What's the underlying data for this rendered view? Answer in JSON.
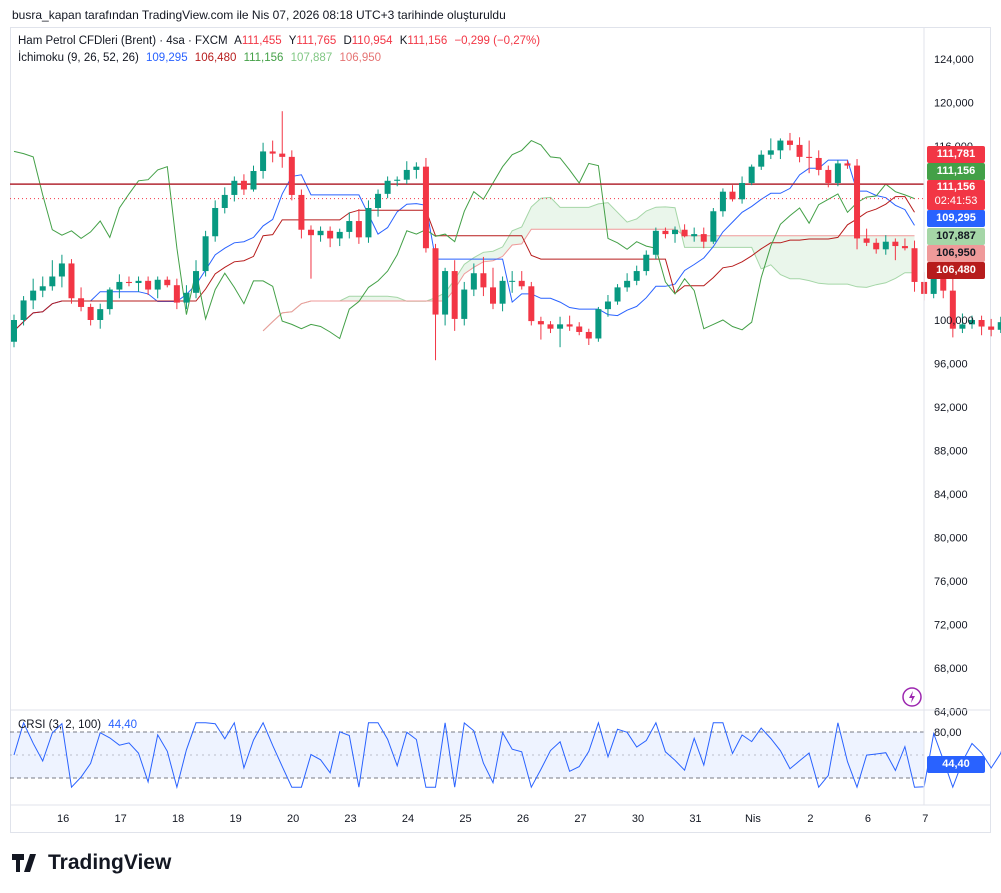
{
  "credit": "busra_kapan tarafından TradingView.com ile Nis 07, 2026 08:18 UTC+3 tarihinde oluşturuldu",
  "legend": {
    "symbol": "Ham Petrol CFDleri (Brent) · 4sa · FXCM",
    "open_label": "A",
    "open": "111,455",
    "high_label": "Y",
    "high": "111,765",
    "low_label": "D",
    "low": "110,954",
    "close_label": "K",
    "close": "111,156",
    "change": "−0,299 (−0,27%)",
    "ichimoku_label": "İchimoku (9, 26, 52, 26)",
    "ichimoku_values": [
      "109,295",
      "106,480",
      "111,156",
      "107,887",
      "106,950"
    ],
    "crsi_label": "CRSI (3, 2, 100)",
    "crsi_value": "44,40"
  },
  "price_tags": {
    "t1": "111,781",
    "t2": "111,156",
    "t3a": "111,156",
    "t3b": "02:41:53",
    "t4": "109,295",
    "t5": "107,887",
    "t6": "106,950",
    "t7": "106,480",
    "crsi": "44,40"
  },
  "colors": {
    "up": "#089981",
    "down": "#f23645",
    "tenkan": "#2962ff",
    "kijun": "#b71c1c",
    "chikou": "#43a047",
    "span_a": "#a5d6a7",
    "span_b": "#ef9a9a",
    "crsi": "#2962ff",
    "resistance": "#b22833"
  },
  "logo_text": "TradingView",
  "chart_data": {
    "type": "candlestick",
    "y_axis": [
      "124,000",
      "120,000",
      "116,000",
      "100,000",
      "96,000",
      "92,000",
      "88,000",
      "84,000",
      "80,000",
      "76,000",
      "72,000",
      "68,000",
      "64,000"
    ],
    "ylim": [
      63000,
      125000
    ],
    "x_ticks": [
      {
        "label": "16",
        "i": 2
      },
      {
        "label": "17",
        "i": 8
      },
      {
        "label": "18",
        "i": 14
      },
      {
        "label": "19",
        "i": 20
      },
      {
        "label": "20",
        "i": 26
      },
      {
        "label": "23",
        "i": 32
      },
      {
        "label": "24",
        "i": 38
      },
      {
        "label": "25",
        "i": 44
      },
      {
        "label": "26",
        "i": 50
      },
      {
        "label": "27",
        "i": 56
      },
      {
        "label": "30",
        "i": 62
      },
      {
        "label": "31",
        "i": 68
      },
      {
        "label": "Nis",
        "i": 74
      },
      {
        "label": "2",
        "i": 80
      },
      {
        "label": "6",
        "i": 86
      },
      {
        "label": "7",
        "i": 92
      }
    ],
    "candles": [
      [
        98,
        100.5,
        97.5,
        100
      ],
      [
        100,
        102.2,
        99.5,
        101.8
      ],
      [
        101.8,
        103.8,
        101,
        102.7
      ],
      [
        102.7,
        104,
        102.1,
        103.1
      ],
      [
        103.1,
        105.5,
        102.7,
        104
      ],
      [
        104,
        106,
        103,
        105.2
      ],
      [
        105.2,
        105.6,
        101.5,
        102
      ],
      [
        102,
        103,
        100.8,
        101.2
      ],
      [
        101.2,
        101.5,
        99.5,
        100
      ],
      [
        100,
        101.5,
        99.2,
        101
      ],
      [
        101,
        103,
        100.5,
        102.8
      ],
      [
        102.8,
        104.2,
        102,
        103.5
      ],
      [
        103.5,
        104,
        103.1,
        103.4
      ],
      [
        103.4,
        104,
        102.6,
        103.6
      ],
      [
        103.6,
        104,
        102.3,
        102.8
      ],
      [
        102.8,
        104,
        102,
        103.7
      ],
      [
        103.7,
        104,
        103,
        103.2
      ],
      [
        103.2,
        103.8,
        101,
        101.6
      ],
      [
        101.6,
        103.2,
        101,
        102.5
      ],
      [
        102.5,
        105.5,
        102,
        104.5
      ],
      [
        104.5,
        108.2,
        104,
        107.7
      ],
      [
        107.7,
        111,
        107.2,
        110.3
      ],
      [
        110.3,
        112.2,
        109.8,
        111.5
      ],
      [
        111.5,
        113.2,
        110.9,
        112.8
      ],
      [
        112.8,
        113.4,
        111.5,
        112
      ],
      [
        112,
        114.2,
        111.8,
        113.7
      ],
      [
        113.7,
        116.3,
        113,
        115.5
      ],
      [
        115.5,
        116.5,
        114.5,
        115.3
      ],
      [
        115.3,
        119.2,
        114,
        115
      ],
      [
        115,
        115.6,
        111,
        111.5
      ],
      [
        111.5,
        112,
        107.5,
        108.3
      ],
      [
        108.3,
        108.7,
        103.8,
        107.8
      ],
      [
        107.8,
        108.6,
        107.2,
        108.2
      ],
      [
        108.2,
        108.6,
        106.7,
        107.5
      ],
      [
        107.5,
        108.4,
        106.8,
        108.1
      ],
      [
        108.1,
        109.9,
        107.5,
        109.1
      ],
      [
        109.1,
        110.2,
        107,
        107.6
      ],
      [
        107.6,
        111,
        107.1,
        110.3
      ],
      [
        110.3,
        112,
        109.5,
        111.6
      ],
      [
        111.6,
        113.2,
        111.2,
        112.8
      ],
      [
        112.8,
        113.2,
        112.3,
        112.9
      ],
      [
        112.9,
        114.6,
        112.5,
        113.8
      ],
      [
        113.8,
        114.5,
        113,
        114.1
      ],
      [
        114.1,
        114.9,
        106.2,
        106.6
      ],
      [
        106.6,
        107,
        96.3,
        100.5
      ],
      [
        100.5,
        104.8,
        99.5,
        104.5
      ],
      [
        104.5,
        105.5,
        99,
        100.1
      ],
      [
        100.1,
        103.5,
        99.5,
        102.8
      ],
      [
        102.8,
        105.2,
        102.2,
        104.3
      ],
      [
        104.3,
        105.8,
        102.2,
        103
      ],
      [
        103,
        104.8,
        101,
        101.5
      ],
      [
        101.5,
        104,
        100.8,
        103.6
      ],
      [
        103.6,
        104.5,
        102.5,
        103.6
      ],
      [
        103.6,
        104.5,
        102.8,
        103.1
      ],
      [
        103.1,
        103.5,
        99.5,
        99.9
      ],
      [
        99.9,
        100.3,
        98.2,
        99.6
      ],
      [
        99.6,
        99.9,
        98.8,
        99.2
      ],
      [
        99.2,
        100.3,
        97.5,
        99.6
      ],
      [
        99.6,
        100.4,
        99,
        99.4
      ],
      [
        99.4,
        99.8,
        98.6,
        98.9
      ],
      [
        98.9,
        99.2,
        97.7,
        98.3
      ],
      [
        98.3,
        101.2,
        98,
        101
      ],
      [
        101,
        102.3,
        100.3,
        101.7
      ],
      [
        101.7,
        103.3,
        101.4,
        103
      ],
      [
        103,
        104.3,
        102.6,
        103.6
      ],
      [
        103.6,
        105,
        103.2,
        104.5
      ],
      [
        104.5,
        106.4,
        104.1,
        106
      ],
      [
        106,
        108.5,
        105.6,
        108.2
      ],
      [
        108.2,
        108.5,
        107.5,
        107.9
      ],
      [
        107.9,
        108.6,
        107.1,
        108.3
      ],
      [
        108.3,
        108.8,
        107.6,
        107.7
      ],
      [
        107.7,
        108.5,
        107.2,
        107.9
      ],
      [
        107.9,
        108.5,
        106.6,
        107.2
      ],
      [
        107.2,
        110.3,
        107,
        110
      ],
      [
        110,
        112.1,
        109.5,
        111.8
      ],
      [
        111.8,
        112.4,
        110.9,
        111.1
      ],
      [
        111.1,
        113.2,
        110.7,
        112.6
      ],
      [
        112.6,
        114.3,
        112.4,
        114.1
      ],
      [
        114.1,
        115.6,
        113.8,
        115.2
      ],
      [
        115.2,
        116.7,
        114.8,
        115.6
      ],
      [
        115.6,
        116.7,
        114.8,
        116.5
      ],
      [
        116.5,
        117.2,
        115.6,
        116.1
      ],
      [
        116.1,
        116.8,
        114.5,
        115
      ],
      [
        115,
        116.5,
        113.5,
        114.9
      ],
      [
        114.9,
        115.6,
        113.3,
        113.8
      ],
      [
        113.8,
        114.2,
        112.2,
        112.6
      ],
      [
        112.6,
        114.7,
        112.3,
        114.4
      ],
      [
        114.4,
        114.7,
        113.9,
        114.2
      ],
      [
        114.2,
        114.8,
        106.5,
        107.5
      ],
      [
        107.5,
        108.4,
        106.8,
        107.1
      ],
      [
        107.1,
        107.5,
        106.1,
        106.5
      ],
      [
        106.5,
        107.8,
        106,
        107.2
      ],
      [
        107.2,
        107.5,
        105.5,
        106.8
      ],
      [
        106.8,
        107.5,
        106.4,
        106.6
      ],
      [
        106.6,
        107.3,
        102.6,
        103.5
      ],
      [
        103.5,
        104.4,
        101.8,
        102.4
      ],
      [
        102.4,
        104.3,
        102,
        103.8
      ],
      [
        103.8,
        104.6,
        102,
        102.7
      ],
      [
        102.7,
        104,
        98.4,
        99.2
      ],
      [
        99.2,
        100.6,
        98.8,
        99.6
      ],
      [
        99.6,
        100.4,
        99.2,
        100
      ],
      [
        100,
        100.4,
        98.6,
        99.4
      ],
      [
        99.4,
        100.1,
        98.5,
        99.1
      ],
      [
        99.1,
        100.3,
        98.8,
        99.8
      ],
      [
        99.8,
        104.1,
        99,
        103.9
      ],
      [
        103.9,
        107.3,
        103.4,
        106.8
      ],
      [
        106.8,
        109.2,
        106.4,
        108.8
      ],
      [
        108.8,
        110,
        108.2,
        109.6
      ],
      [
        109.6,
        110.5,
        108.3,
        110.3
      ],
      [
        110.3,
        110.6,
        108.6,
        108.9
      ],
      [
        108.9,
        110.8,
        108.3,
        110.6
      ],
      [
        110.6,
        111.4,
        109.8,
        111.1
      ],
      [
        111.1,
        111.9,
        110.6,
        111.6
      ],
      [
        111.6,
        111.9,
        109.4,
        109.9
      ],
      [
        109.9,
        111.4,
        109.2,
        110.8
      ],
      [
        110.8,
        111.5,
        110.5,
        111.3
      ],
      [
        111.3,
        112.4,
        110.9,
        111.4
      ],
      [
        111.4,
        112.7,
        110.5,
        112.5
      ],
      [
        112.5,
        112.9,
        111.7,
        111.8
      ],
      [
        111.8,
        112.3,
        110.9,
        111.5
      ],
      [
        111.5,
        111.8,
        111,
        111.16
      ]
    ],
    "resistance_level": 112.5,
    "crsi": {
      "ylim": [
        15,
        95
      ],
      "levels": [
        80,
        20
      ],
      "value": 44.4
    }
  }
}
